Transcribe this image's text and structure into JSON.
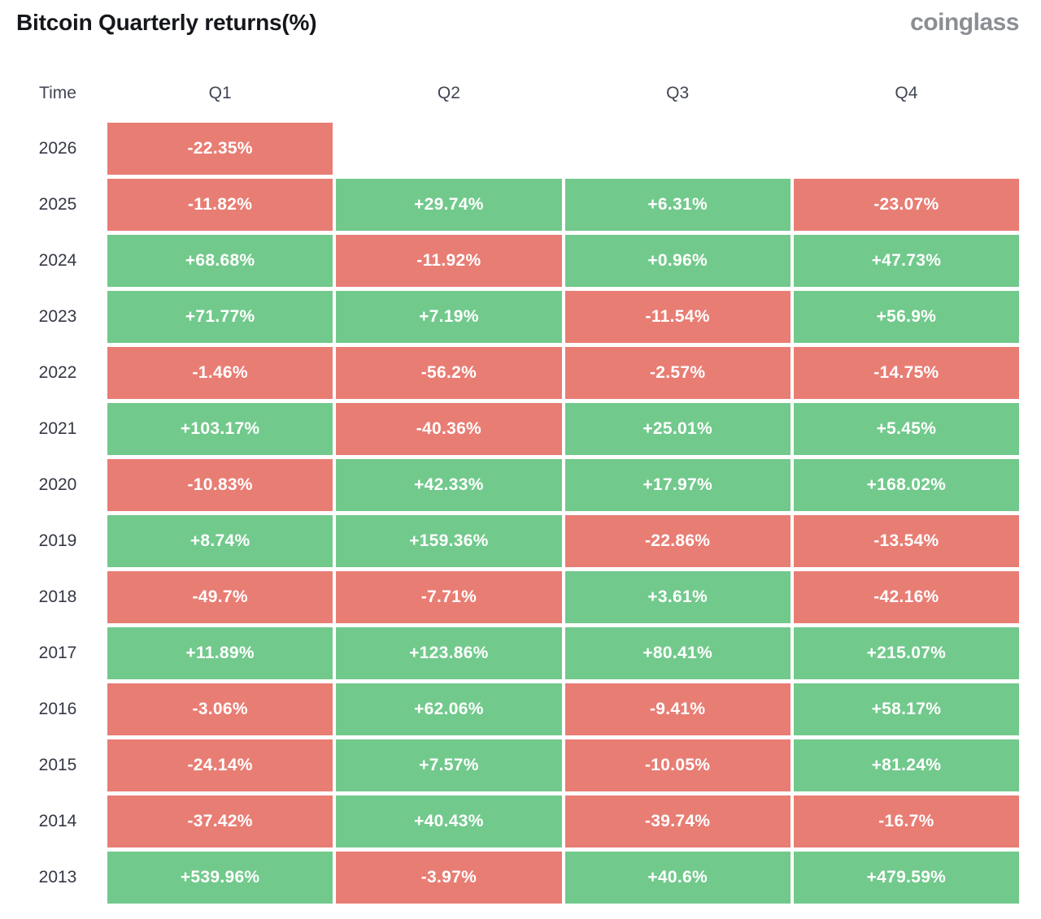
{
  "header": {
    "title": "Bitcoin Quarterly returns(%)",
    "logo": "coinglass"
  },
  "table": {
    "columns": [
      "Time",
      "Q1",
      "Q2",
      "Q3",
      "Q4"
    ]
  },
  "colors": {
    "positive": "#72c98c",
    "negative": "#e87d74",
    "cell_text": "#ffffff",
    "title_text": "#15171d",
    "logo_text": "#8b8e93",
    "header_text": "#414652",
    "year_text": "#343944"
  },
  "chart_data": {
    "type": "heatmap",
    "title": "Bitcoin Quarterly returns(%)",
    "source": "coinglass",
    "columns": [
      "Q1",
      "Q2",
      "Q3",
      "Q4"
    ],
    "unit": "%",
    "color_rule": "negative values red, positive values green",
    "rows": [
      {
        "year": "2026",
        "values": [
          -22.35,
          null,
          null,
          null
        ],
        "labels": [
          "-22.35%",
          "",
          "",
          ""
        ]
      },
      {
        "year": "2025",
        "values": [
          -11.82,
          29.74,
          6.31,
          -23.07
        ],
        "labels": [
          "-11.82%",
          "+29.74%",
          "+6.31%",
          "-23.07%"
        ]
      },
      {
        "year": "2024",
        "values": [
          68.68,
          -11.92,
          0.96,
          47.73
        ],
        "labels": [
          "+68.68%",
          "-11.92%",
          "+0.96%",
          "+47.73%"
        ]
      },
      {
        "year": "2023",
        "values": [
          71.77,
          7.19,
          -11.54,
          56.9
        ],
        "labels": [
          "+71.77%",
          "+7.19%",
          "-11.54%",
          "+56.9%"
        ]
      },
      {
        "year": "2022",
        "values": [
          -1.46,
          -56.2,
          -2.57,
          -14.75
        ],
        "labels": [
          "-1.46%",
          "-56.2%",
          "-2.57%",
          "-14.75%"
        ]
      },
      {
        "year": "2021",
        "values": [
          103.17,
          -40.36,
          25.01,
          5.45
        ],
        "labels": [
          "+103.17%",
          "-40.36%",
          "+25.01%",
          "+5.45%"
        ]
      },
      {
        "year": "2020",
        "values": [
          -10.83,
          42.33,
          17.97,
          168.02
        ],
        "labels": [
          "-10.83%",
          "+42.33%",
          "+17.97%",
          "+168.02%"
        ]
      },
      {
        "year": "2019",
        "values": [
          8.74,
          159.36,
          -22.86,
          -13.54
        ],
        "labels": [
          "+8.74%",
          "+159.36%",
          "-22.86%",
          "-13.54%"
        ]
      },
      {
        "year": "2018",
        "values": [
          -49.7,
          -7.71,
          3.61,
          -42.16
        ],
        "labels": [
          "-49.7%",
          "-7.71%",
          "+3.61%",
          "-42.16%"
        ]
      },
      {
        "year": "2017",
        "values": [
          11.89,
          123.86,
          80.41,
          215.07
        ],
        "labels": [
          "+11.89%",
          "+123.86%",
          "+80.41%",
          "+215.07%"
        ]
      },
      {
        "year": "2016",
        "values": [
          -3.06,
          62.06,
          -9.41,
          58.17
        ],
        "labels": [
          "-3.06%",
          "+62.06%",
          "-9.41%",
          "+58.17%"
        ]
      },
      {
        "year": "2015",
        "values": [
          -24.14,
          7.57,
          -10.05,
          81.24
        ],
        "labels": [
          "-24.14%",
          "+7.57%",
          "-10.05%",
          "+81.24%"
        ]
      },
      {
        "year": "2014",
        "values": [
          -37.42,
          40.43,
          -39.74,
          -16.7
        ],
        "labels": [
          "-37.42%",
          "+40.43%",
          "-39.74%",
          "-16.7%"
        ]
      },
      {
        "year": "2013",
        "values": [
          539.96,
          -3.97,
          40.6,
          479.59
        ],
        "labels": [
          "+539.96%",
          "-3.97%",
          "+40.6%",
          "+479.59%"
        ]
      }
    ]
  }
}
